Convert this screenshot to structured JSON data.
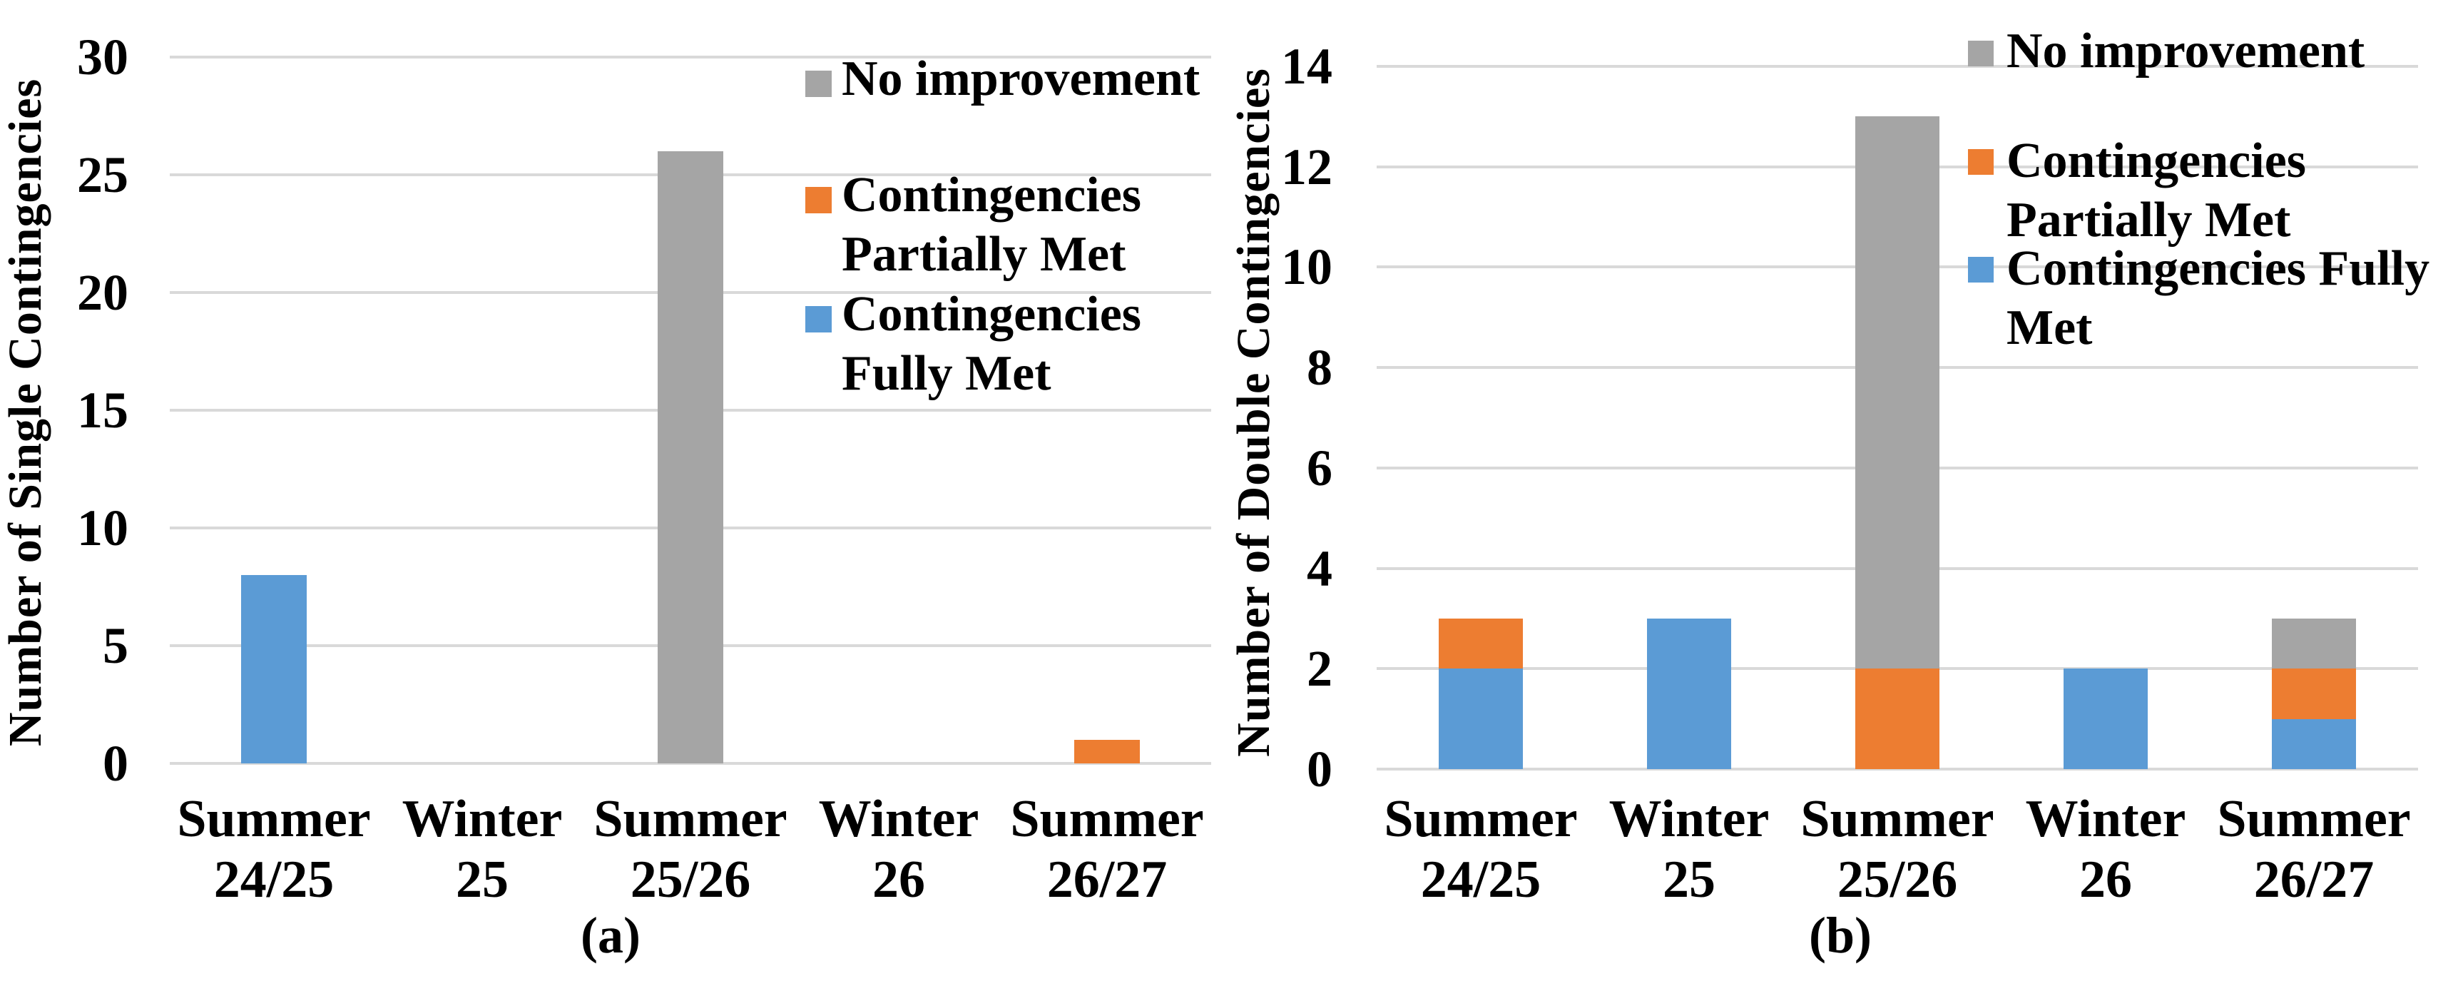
{
  "colors": {
    "blue": "#5B9BD5",
    "orange": "#ED7D31",
    "gray": "#A5A5A5",
    "gridline": "#D9D9D9",
    "text": "#000000",
    "background": "#FFFFFF"
  },
  "chart_data": [
    {
      "id": "a",
      "type": "bar",
      "stacked": true,
      "title": "",
      "xlabel": "",
      "ylabel": "Number of Single Contingencies",
      "caption": "(a)",
      "categories": [
        "Summer 24/25",
        "Winter 25",
        "Summer 25/26",
        "Winter 26",
        "Summer 26/27"
      ],
      "series": [
        {
          "name": "Contingencies Fully Met",
          "color_key": "blue",
          "values": [
            8,
            0,
            0,
            0,
            0
          ]
        },
        {
          "name": "Contingencies Partially Met",
          "color_key": "orange",
          "values": [
            0,
            0,
            0,
            0,
            1
          ]
        },
        {
          "name": "No improvement",
          "color_key": "gray",
          "values": [
            0,
            0,
            26,
            0,
            0
          ]
        }
      ],
      "ylim": [
        0,
        30
      ],
      "ytick_step": 5,
      "grid": true,
      "legend_position": "inside-top-right",
      "legend": [
        {
          "label": "No improvement",
          "lines": [
            "No improvement"
          ],
          "color_key": "gray"
        },
        {
          "label": "Contingencies Partially Met",
          "lines": [
            "Contingencies",
            "Partially Met"
          ],
          "color_key": "orange"
        },
        {
          "label": "Contingencies Fully Met",
          "lines": [
            "Contingencies",
            "Fully Met"
          ],
          "color_key": "blue"
        }
      ]
    },
    {
      "id": "b",
      "type": "bar",
      "stacked": true,
      "title": "",
      "xlabel": "",
      "ylabel": "Number of Double Contingencies",
      "caption": "(b)",
      "categories": [
        "Summer 24/25",
        "Winter 25",
        "Summer 25/26",
        "Winter 26",
        "Summer 26/27"
      ],
      "series": [
        {
          "name": "Contingencies Fully Met",
          "color_key": "blue",
          "values": [
            2,
            3,
            0,
            2,
            1
          ]
        },
        {
          "name": "Contingencies Partially Met",
          "color_key": "orange",
          "values": [
            1,
            0,
            2,
            0,
            1
          ]
        },
        {
          "name": "No improvement",
          "color_key": "gray",
          "values": [
            0,
            0,
            11,
            0,
            1
          ]
        }
      ],
      "ylim": [
        0,
        14
      ],
      "ytick_step": 2,
      "grid": true,
      "legend_position": "inside-top-right",
      "legend": [
        {
          "label": "No improvement",
          "lines": [
            "No improvement"
          ],
          "color_key": "gray"
        },
        {
          "label": "Contingencies Partially Met",
          "lines": [
            "Contingencies",
            "Partially Met"
          ],
          "color_key": "orange"
        },
        {
          "label": "Contingencies Fully Met",
          "lines": [
            "Contingencies Fully",
            "Met"
          ],
          "color_key": "blue"
        }
      ]
    }
  ]
}
